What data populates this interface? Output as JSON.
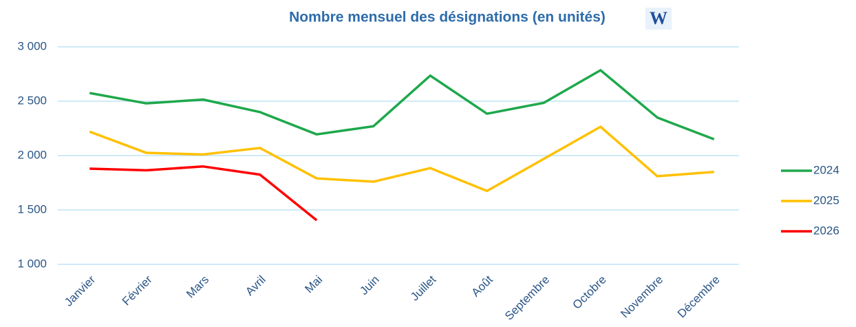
{
  "chart_data": {
    "type": "line",
    "title": "Nombre mensuel des désignations (en unités)",
    "logo": "W",
    "categories": [
      "Janvier",
      "Février",
      "Mars",
      "Avril",
      "Mai",
      "Juin",
      "Juillet",
      "Août",
      "Septembre",
      "Octobre",
      "Novembre",
      "Décembre"
    ],
    "series": [
      {
        "name": "2024",
        "color": "#1ea84b",
        "values": [
          2575,
          2480,
          2515,
          2400,
          2195,
          2270,
          2735,
          2385,
          2485,
          2785,
          2350,
          2150
        ]
      },
      {
        "name": "2025",
        "color": "#ffc000",
        "values": [
          2220,
          2025,
          2010,
          2070,
          1790,
          1760,
          1885,
          1675,
          1970,
          2265,
          1810,
          1850
        ]
      },
      {
        "name": "2026",
        "color": "#ff0000",
        "values": [
          1880,
          1865,
          1900,
          1825,
          1405,
          null,
          null,
          null,
          null,
          null,
          null,
          null
        ]
      }
    ],
    "ylim": [
      1000,
      3000
    ],
    "yticks": [
      {
        "value": 1000,
        "label": "1 000"
      },
      {
        "value": 1500,
        "label": "1 500"
      },
      {
        "value": 2000,
        "label": "2 000"
      },
      {
        "value": 2500,
        "label": "2 500"
      },
      {
        "value": 3000,
        "label": "3 000"
      }
    ],
    "grid": true,
    "legend": "right"
  }
}
